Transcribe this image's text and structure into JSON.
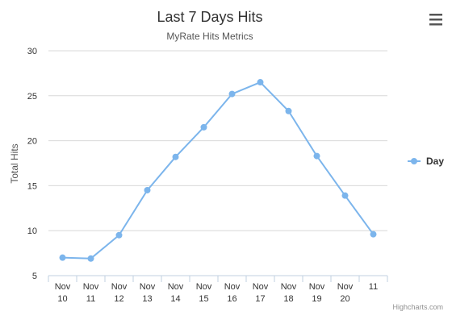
{
  "menu": {
    "icon": "hamburger-menu-icon"
  },
  "credits": "Highcharts.com",
  "chart_data": {
    "type": "line",
    "title": "Last 7 Days Hits",
    "subtitle": "MyRate Hits Metrics",
    "xlabel": "",
    "ylabel": "Total Hits",
    "categories": [
      [
        "Nov",
        "10"
      ],
      [
        "Nov",
        "11"
      ],
      [
        "Nov",
        "12"
      ],
      [
        "Nov",
        "13"
      ],
      [
        "Nov",
        "14"
      ],
      [
        "Nov",
        "15"
      ],
      [
        "Nov",
        "16"
      ],
      [
        "Nov",
        "17"
      ],
      [
        "Nov",
        "18"
      ],
      [
        "Nov",
        "19"
      ],
      [
        "Nov",
        "20"
      ],
      [
        "11"
      ]
    ],
    "series": [
      {
        "name": "Day",
        "color": "#7cb5ec",
        "values": [
          7.0,
          6.9,
          9.5,
          14.5,
          18.2,
          21.5,
          25.2,
          26.5,
          23.3,
          18.3,
          13.9,
          9.6
        ]
      }
    ],
    "ylim": [
      5,
      30
    ],
    "yticks": [
      5,
      10,
      15,
      20,
      25,
      30
    ],
    "grid": true,
    "legend_position": "right"
  }
}
